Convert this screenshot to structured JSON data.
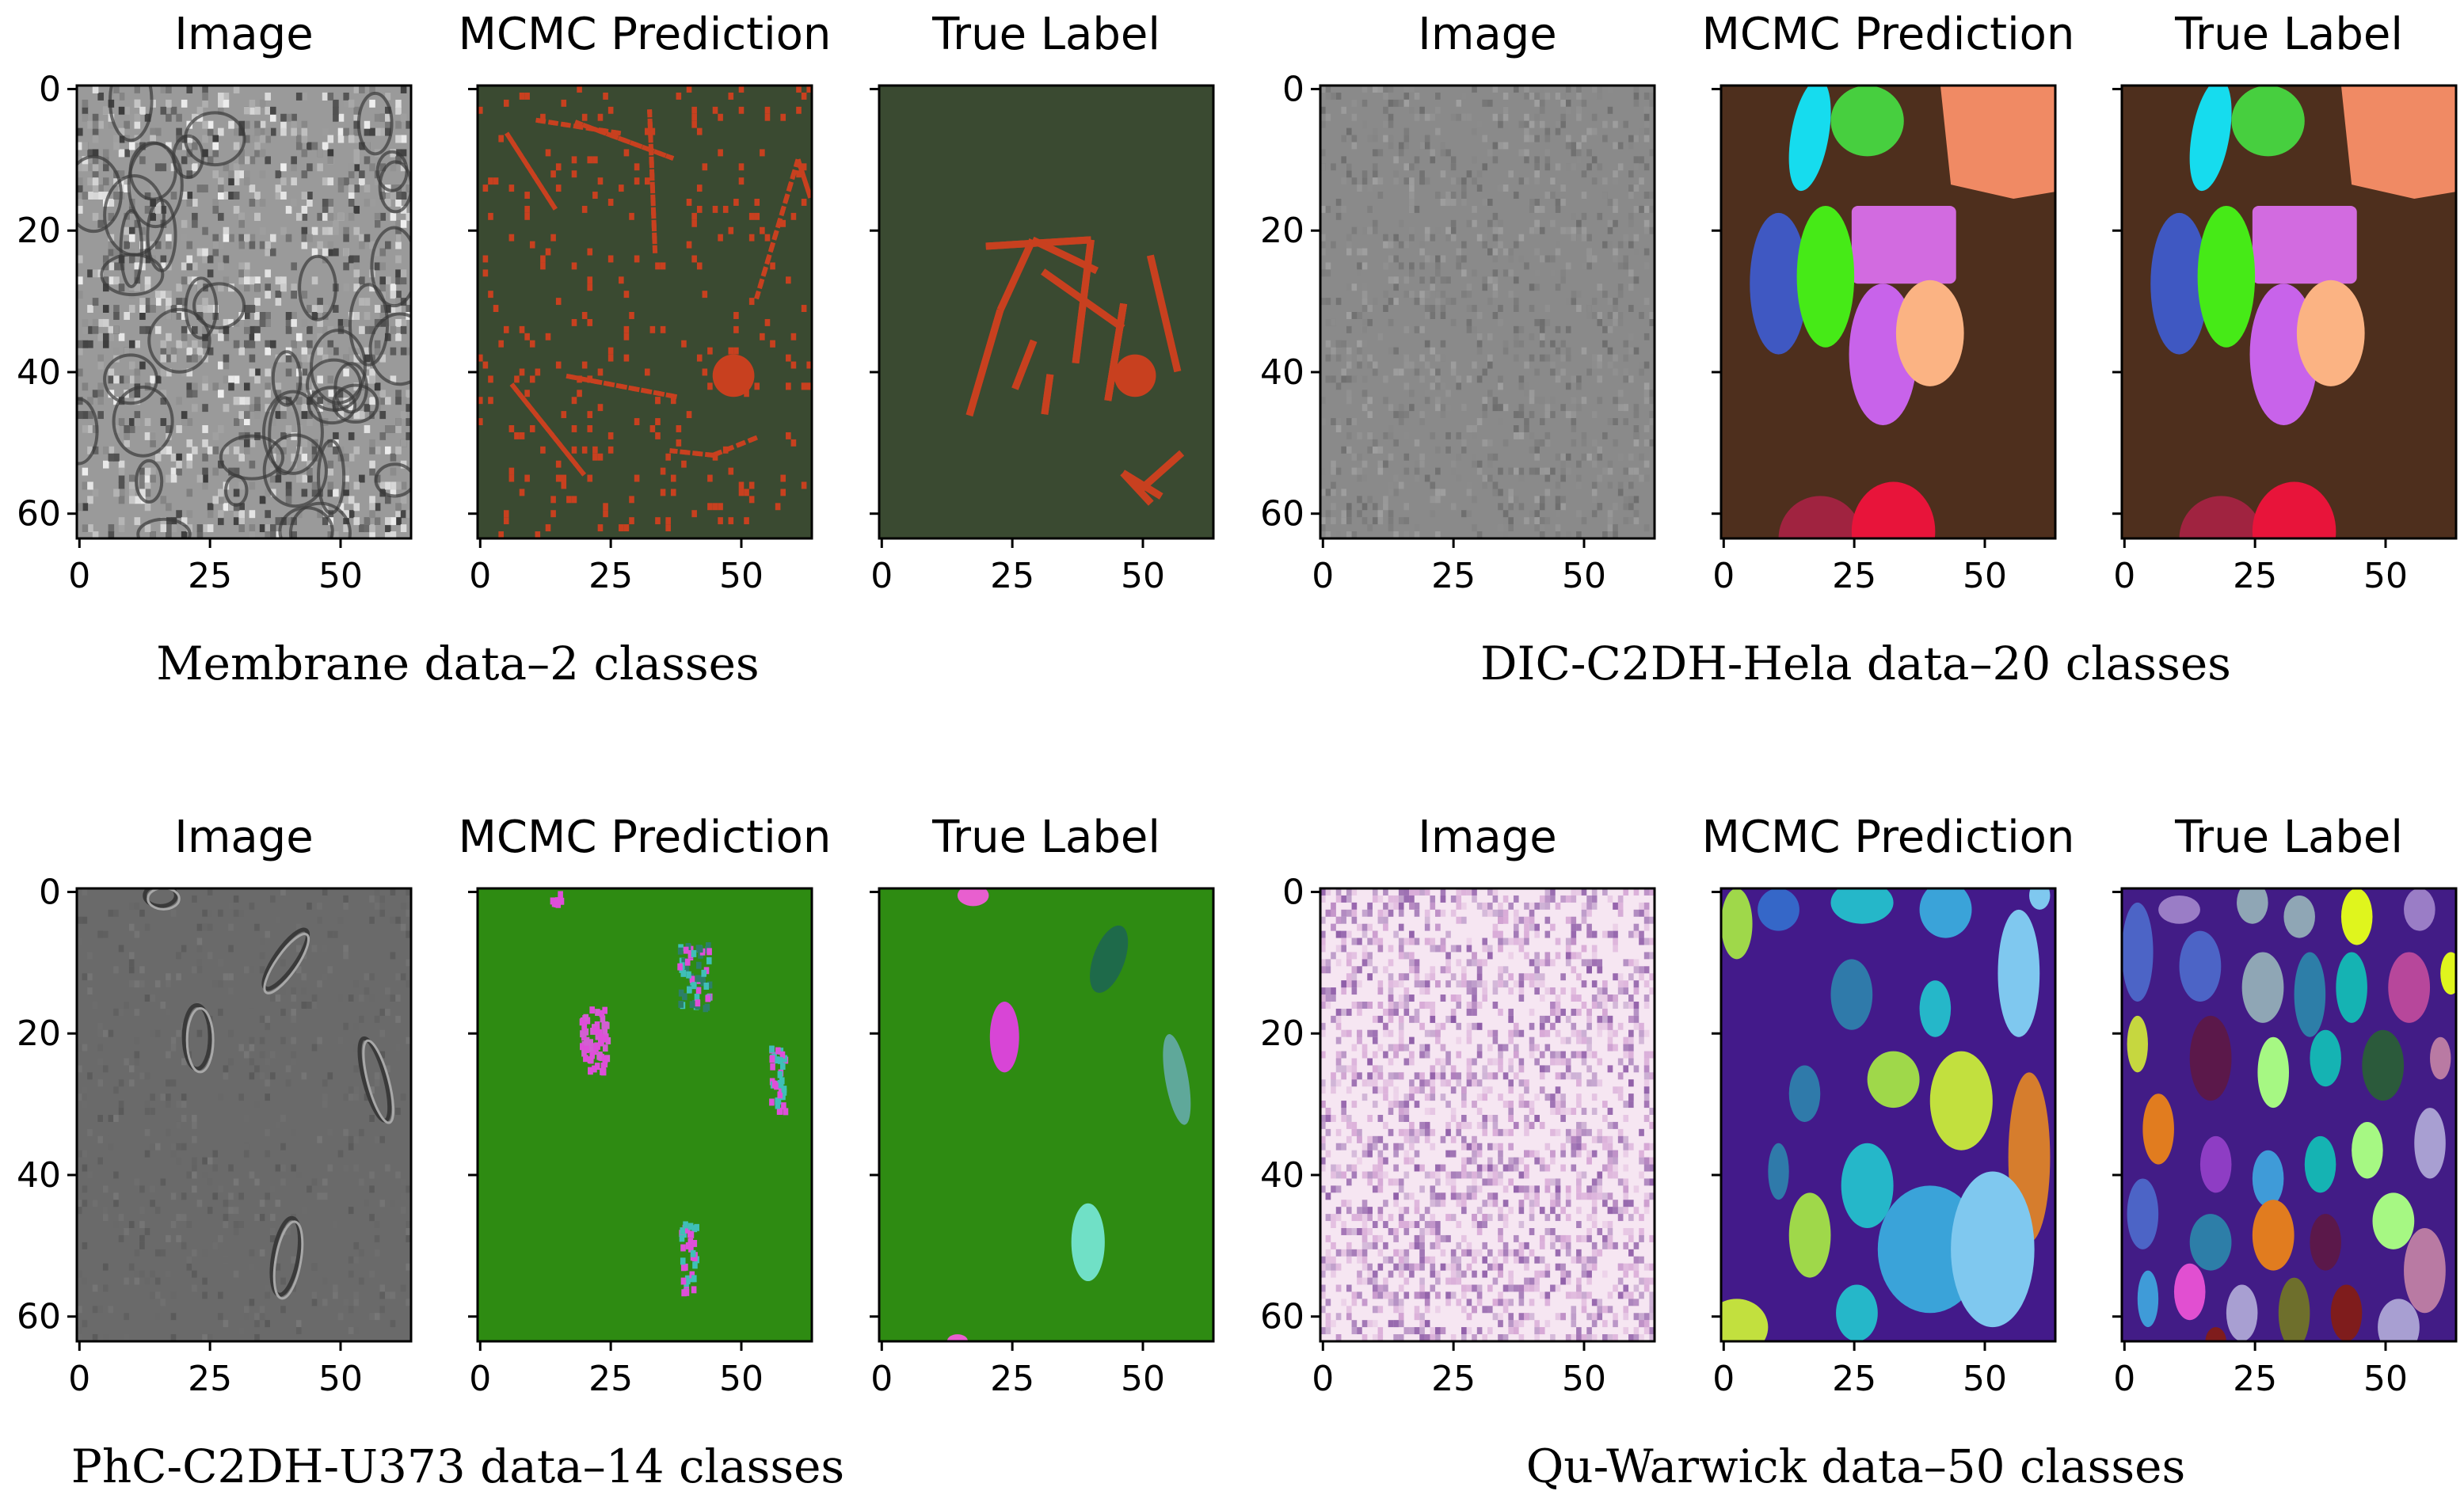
{
  "figure": {
    "groups": [
      {
        "caption": "Membrane data–2 classes",
        "panels": [
          {
            "title": "Image",
            "kind": "grayscale-membrane",
            "colors": [
              "#2b2b2b",
              "#e9e9e9"
            ]
          },
          {
            "title": "MCMC Prediction",
            "kind": "membrane-pred",
            "colors": [
              "#3a4a31",
              "#c8401f"
            ]
          },
          {
            "title": "True Label",
            "kind": "membrane-true",
            "colors": [
              "#3a4a31",
              "#c8401f"
            ]
          }
        ]
      },
      {
        "caption": "DIC-C2DH-Hela data–20 classes",
        "panels": [
          {
            "title": "Image",
            "kind": "gray-noise",
            "colors": [
              "#8a8a8a",
              "#7a7a7a"
            ]
          },
          {
            "title": "MCMC Prediction",
            "kind": "hela",
            "colors": [
              "#4e2f1d",
              "#16dcee",
              "#47cf3f",
              "#f08a64",
              "#d26be0",
              "#3f58c2",
              "#46ea17",
              "#c863ea",
              "#fbb383",
              "#a02340",
              "#e8143a"
            ]
          },
          {
            "title": "True Label",
            "kind": "hela",
            "colors": [
              "#4e2f1d",
              "#16dcee",
              "#47cf3f",
              "#f08a64",
              "#d26be0",
              "#3f58c2",
              "#46ea17",
              "#c863ea",
              "#fbb383",
              "#a02340",
              "#e8143a"
            ]
          }
        ]
      },
      {
        "caption": "PhC-C2DH-U373 data–14 classes",
        "panels": [
          {
            "title": "Image",
            "kind": "phc-image",
            "colors": [
              "#6a6a6a",
              "#3a3a3a",
              "#a8a8a8"
            ]
          },
          {
            "title": "MCMC Prediction",
            "kind": "phc-pred",
            "colors": [
              "#2e8b12",
              "#de4fd9",
              "#3fbfb8",
              "#2c7f69",
              "#d35fd2"
            ]
          },
          {
            "title": "True Label",
            "kind": "phc-true",
            "colors": [
              "#2e8b12",
              "#d845d6",
              "#1e6a4a",
              "#5fa89a",
              "#70e0c6",
              "#e85fcf"
            ]
          }
        ]
      },
      {
        "caption": "Qu-Warwick data–50 classes",
        "panels": [
          {
            "title": "Image",
            "kind": "pink-noise",
            "colors": [
              "#f6e6f2",
              "#8c5aa6",
              "#d7a8d6"
            ]
          },
          {
            "title": "MCMC Prediction",
            "kind": "qu-pred",
            "colors": [
              "#431a8a",
              "#3aa3d9",
              "#3567c8",
              "#25b7c9",
              "#9fd84a",
              "#c2e03e",
              "#2f7aaa",
              "#d67d2d",
              "#7fc8ef"
            ]
          },
          {
            "title": "True Label",
            "kind": "qu-true",
            "colors": [
              "#421c86",
              "#4c64c6",
              "#9a7dc6",
              "#8fa6b5",
              "#dff51d",
              "#b7479b",
              "#2d7ea8",
              "#15b3b3",
              "#2b5a3b",
              "#8e3dc4",
              "#e17c1f",
              "#5b184a",
              "#a6f883",
              "#c6d73f",
              "#3f9bd8",
              "#e14fd1",
              "#b97aa3",
              "#a89fd2",
              "#6e6f2c",
              "#7f1c1c",
              "#3cc36f"
            ]
          }
        ]
      }
    ],
    "axis": {
      "xticks": [
        "0",
        "25",
        "50"
      ],
      "yticks": [
        "0",
        "20",
        "40",
        "60"
      ]
    }
  }
}
